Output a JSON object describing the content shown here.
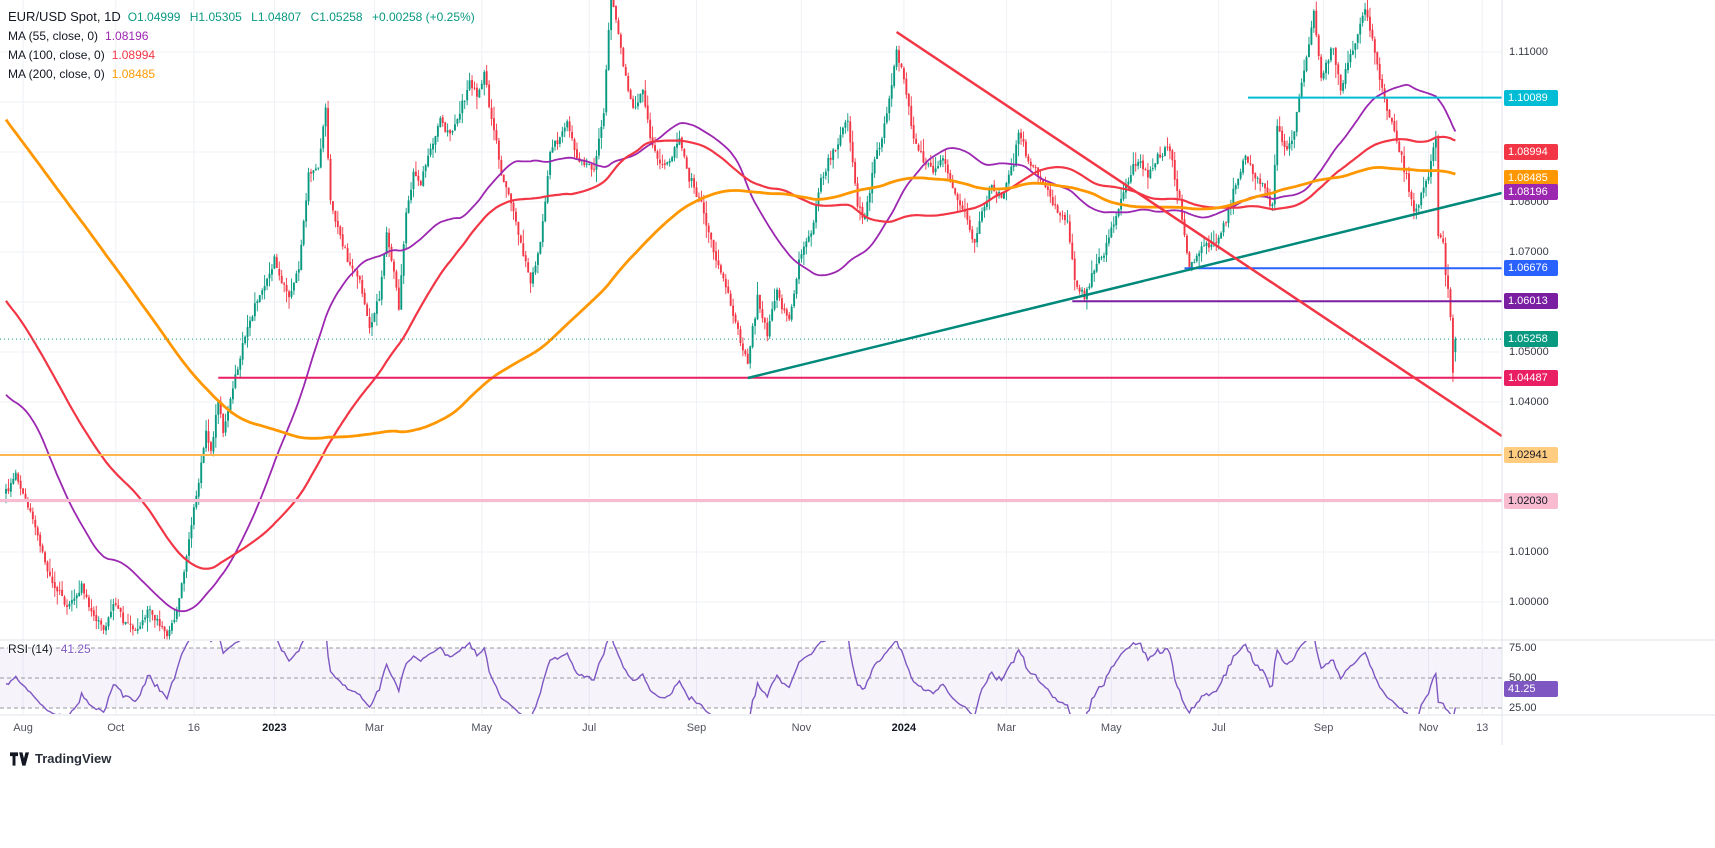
{
  "legend": {
    "symbol": "EUR/USD Spot, 1D",
    "ohlc": {
      "open": "O1.04999",
      "high": "H1.05305",
      "low": "L1.04807",
      "close": "C1.05258",
      "change": "+0.00258 (+0.25%)",
      "color": "#089981"
    },
    "mas": [
      {
        "label": "MA (55, close, 0)",
        "value": "1.08196",
        "color": "#9c27b0"
      },
      {
        "label": "MA (100, close, 0)",
        "value": "1.08994",
        "color": "#f23645"
      },
      {
        "label": "MA (200, close, 0)",
        "value": "1.08485",
        "color": "#ff9800"
      }
    ]
  },
  "rsi_legend": {
    "label": "RSI (14)",
    "value": "41.25",
    "color": "#7e57c2"
  },
  "logo_text": "TradingView",
  "chart_data": {
    "type": "candlestick",
    "symbol": "EUR/USD Spot",
    "timeframe": "1D",
    "x_range": [
      "Aug 2022",
      "Nov 2024"
    ],
    "price_range": [
      0.9924,
      1.1204
    ],
    "up_color": "#089981",
    "down_color": "#f23645",
    "last_candle": {
      "open": 1.04999,
      "high": 1.05305,
      "low": 1.04807,
      "close": 1.05258
    },
    "dip_low": {
      "day": 593,
      "low": 1.044
    },
    "prehistory_days": 210,
    "visible_days": 595,
    "noise_seed": 42,
    "noise_amp": 0.0011,
    "wick_amp": 0.0028,
    "gap_amp": 0.0004,
    "close_anchors": [
      [
        -210,
        1.157
      ],
      [
        -199,
        1.16
      ],
      [
        -177,
        1.132
      ],
      [
        -155,
        1.13
      ],
      [
        -134,
        1.134
      ],
      [
        -114,
        1.134
      ],
      [
        -97,
        1.086
      ],
      [
        -91,
        1.098
      ],
      [
        -70,
        1.085
      ],
      [
        -50,
        1.04
      ],
      [
        -38,
        1.074
      ],
      [
        -27,
        1.052
      ],
      [
        -20,
        1.045
      ],
      [
        -12,
        1.002
      ],
      [
        -4,
        1.018
      ],
      [
        -1,
        1.022
      ],
      [
        0,
        1.022
      ],
      [
        4,
        1.0255
      ],
      [
        10,
        1.018
      ],
      [
        18,
        1.005
      ],
      [
        25,
        0.999
      ],
      [
        31,
        1.003
      ],
      [
        36,
        0.997
      ],
      [
        40,
        0.9945
      ],
      [
        44,
        0.999
      ],
      [
        49,
        0.996
      ],
      [
        53,
        0.9938
      ],
      [
        58,
        0.9985
      ],
      [
        62,
        0.996
      ],
      [
        66,
        0.9932
      ],
      [
        70,
        0.998
      ],
      [
        74,
        1.009
      ],
      [
        78,
        1.0215
      ],
      [
        82,
        1.0345
      ],
      [
        84,
        1.03
      ],
      [
        87,
        1.0405
      ],
      [
        89,
        1.0338
      ],
      [
        92,
        1.0408
      ],
      [
        95,
        1.0465
      ],
      [
        98,
        1.053
      ],
      [
        102,
        1.0592
      ],
      [
        106,
        1.063
      ],
      [
        110,
        1.0685
      ],
      [
        113,
        1.064
      ],
      [
        116,
        1.0605
      ],
      [
        120,
        1.067
      ],
      [
        124,
        1.086
      ],
      [
        128,
        1.087
      ],
      [
        131,
        1.099
      ],
      [
        133,
        1.0795
      ],
      [
        137,
        1.073
      ],
      [
        141,
        1.0675
      ],
      [
        145,
        1.064
      ],
      [
        149,
        1.0548
      ],
      [
        153,
        1.0608
      ],
      [
        156,
        1.0735
      ],
      [
        159,
        1.067
      ],
      [
        161,
        1.0585
      ],
      [
        164,
        1.0778
      ],
      [
        167,
        1.0858
      ],
      [
        170,
        1.0838
      ],
      [
        174,
        1.0908
      ],
      [
        178,
        1.0968
      ],
      [
        182,
        1.0928
      ],
      [
        186,
        1.0978
      ],
      [
        190,
        1.104
      ],
      [
        193,
        1.1012
      ],
      [
        196,
        1.1058
      ],
      [
        199,
        1.0968
      ],
      [
        203,
        1.0858
      ],
      [
        207,
        1.0798
      ],
      [
        211,
        1.0718
      ],
      [
        215,
        1.064
      ],
      [
        219,
        1.0712
      ],
      [
        223,
        1.0898
      ],
      [
        227,
        1.0928
      ],
      [
        230,
        1.0958
      ],
      [
        234,
        1.0892
      ],
      [
        238,
        1.0878
      ],
      [
        241,
        1.0862
      ],
      [
        245,
        1.0978
      ],
      [
        248,
        1.123
      ],
      [
        250,
        1.116
      ],
      [
        253,
        1.107
      ],
      [
        257,
        1.099
      ],
      [
        261,
        1.1018
      ],
      [
        265,
        1.0908
      ],
      [
        269,
        1.0868
      ],
      [
        272,
        1.0878
      ],
      [
        276,
        1.0928
      ],
      [
        280,
        1.0848
      ],
      [
        285,
        1.0798
      ],
      [
        290,
        1.0698
      ],
      [
        294,
        1.0648
      ],
      [
        298,
        1.0578
      ],
      [
        302,
        1.0508
      ],
      [
        304,
        1.0478
      ],
      [
        308,
        1.0608
      ],
      [
        312,
        1.0538
      ],
      [
        316,
        1.0618
      ],
      [
        321,
        1.0558
      ],
      [
        325,
        1.0678
      ],
      [
        330,
        1.0738
      ],
      [
        334,
        1.0848
      ],
      [
        338,
        1.0888
      ],
      [
        342,
        1.0928
      ],
      [
        345,
        1.0968
      ],
      [
        349,
        1.0788
      ],
      [
        352,
        1.0768
      ],
      [
        356,
        1.0888
      ],
      [
        360,
        1.0948
      ],
      [
        365,
        1.11
      ],
      [
        368,
        1.1048
      ],
      [
        372,
        1.0928
      ],
      [
        376,
        1.0888
      ],
      [
        380,
        1.0858
      ],
      [
        384,
        1.0888
      ],
      [
        389,
        1.0818
      ],
      [
        393,
        1.0778
      ],
      [
        397,
        1.0718
      ],
      [
        400,
        1.0778
      ],
      [
        404,
        1.0828
      ],
      [
        408,
        1.0808
      ],
      [
        413,
        1.0878
      ],
      [
        415,
        1.0948
      ],
      [
        419,
        1.0878
      ],
      [
        423,
        1.0858
      ],
      [
        427,
        1.0818
      ],
      [
        431,
        1.0788
      ],
      [
        435,
        1.0758
      ],
      [
        438,
        1.0648
      ],
      [
        442,
        1.061
      ],
      [
        446,
        1.0668
      ],
      [
        450,
        1.0698
      ],
      [
        454,
        1.0758
      ],
      [
        458,
        1.0818
      ],
      [
        462,
        1.0868
      ],
      [
        464,
        1.0888
      ],
      [
        468,
        1.0848
      ],
      [
        472,
        1.0888
      ],
      [
        477,
        1.0908
      ],
      [
        481,
        1.0798
      ],
      [
        485,
        1.0672
      ],
      [
        489,
        1.0698
      ],
      [
        492,
        1.0718
      ],
      [
        495,
        1.0712
      ],
      [
        499,
        1.0748
      ],
      [
        503,
        1.0818
      ],
      [
        508,
        1.0898
      ],
      [
        512,
        1.0848
      ],
      [
        516,
        1.0828
      ],
      [
        519,
        1.0788
      ],
      [
        521,
        1.0958
      ],
      [
        524,
        1.0908
      ],
      [
        527,
        1.0918
      ],
      [
        530,
        1.1008
      ],
      [
        533,
        1.1088
      ],
      [
        536,
        1.1178
      ],
      [
        539,
        1.1048
      ],
      [
        541,
        1.1078
      ],
      [
        544,
        1.1108
      ],
      [
        547,
        1.1018
      ],
      [
        550,
        1.1078
      ],
      [
        553,
        1.1118
      ],
      [
        557,
        1.1188
      ],
      [
        560,
        1.1132
      ],
      [
        563,
        1.1048
      ],
      [
        566,
        1.0988
      ],
      [
        569,
        1.0938
      ],
      [
        572,
        1.0888
      ],
      [
        575,
        1.0828
      ],
      [
        577,
        1.0778
      ],
      [
        580,
        1.0808
      ],
      [
        583,
        1.0858
      ],
      [
        586,
        1.0928
      ],
      [
        587,
        1.0728
      ],
      [
        589,
        1.0718
      ],
      [
        590,
        1.0658
      ],
      [
        591,
        1.0628
      ],
      [
        592,
        1.0568
      ],
      [
        593,
        1.046
      ],
      [
        594,
        1.0526
      ]
    ],
    "moving_averages": [
      {
        "period": 55,
        "color": "#9c27b0",
        "width": 1.8
      },
      {
        "period": 100,
        "color": "#f23645",
        "width": 2.2
      },
      {
        "period": 200,
        "color": "#ff9800",
        "width": 2.8
      }
    ],
    "rsi": {
      "period": 14,
      "color": "#7e57c2",
      "band_fill": "rgba(126,87,194,0.07)",
      "levels": [
        {
          "label": "75.00",
          "value": 75
        },
        {
          "label": "50.00",
          "value": 50
        },
        {
          "label": "25.00",
          "value": 25
        }
      ],
      "badge": {
        "label": "41.25",
        "value": 41.25,
        "bg": "#7e57c2",
        "fg": "#ffffff"
      },
      "last_value": 41.25
    },
    "horizontal_lines": [
      {
        "price": 1.10089,
        "color": "#00bcd4",
        "from_day": 509,
        "width": 2,
        "style": "solid"
      },
      {
        "price": 1.06676,
        "color": "#2962ff",
        "from_day": 483,
        "width": 2,
        "style": "solid"
      },
      {
        "price": 1.06013,
        "color": "#7b1fa2",
        "from_day": 437,
        "width": 2,
        "style": "solid"
      },
      {
        "price": 1.04487,
        "color": "#e91e63",
        "from_day": 87,
        "width": 2,
        "style": "solid"
      },
      {
        "price": 1.02941,
        "color": "#ffb74d",
        "from_day": -210,
        "width": 2,
        "style": "solid"
      },
      {
        "price": 1.0203,
        "color": "#f8bbd0",
        "from_day": -210,
        "width": 3,
        "style": "solid"
      },
      {
        "price": 1.05258,
        "color": "#089981",
        "from_day": -210,
        "width": 1,
        "style": "dotted"
      }
    ],
    "trend_lines": [
      {
        "x1_day": 304,
        "y1_price": 1.0448,
        "x2_day": 613,
        "y2_price": 1.0818,
        "color": "#00897b",
        "width": 2.5
      },
      {
        "x1_day": 365,
        "y1_price": 1.114,
        "x2_day": 613,
        "y2_price": 1.0332,
        "color": "#f23645",
        "width": 2.5
      }
    ],
    "price_labels": [
      {
        "label": "1.10089",
        "price": 1.10089,
        "bg": "#00bcd4",
        "fg": "#ffffff"
      },
      {
        "label": "1.08994",
        "price": 1.08994,
        "bg": "#f23645",
        "fg": "#ffffff"
      },
      {
        "label": "1.08485",
        "price": 1.08485,
        "bg": "#ff9800",
        "fg": "#ffffff"
      },
      {
        "label": "1.08196",
        "price": 1.08196,
        "bg": "#9c27b0",
        "fg": "#ffffff"
      },
      {
        "label": "1.06676",
        "price": 1.06676,
        "bg": "#2962ff",
        "fg": "#ffffff"
      },
      {
        "label": "1.06013",
        "price": 1.06013,
        "bg": "#7b1fa2",
        "fg": "#ffffff"
      },
      {
        "label": "1.05258",
        "price": 1.05258,
        "bg": "#089981",
        "fg": "#ffffff"
      },
      {
        "label": "1.04487",
        "price": 1.04487,
        "bg": "#e91e63",
        "fg": "#ffffff"
      },
      {
        "label": "1.02941",
        "price": 1.02941,
        "bg": "#ffcc80",
        "fg": "#131722"
      },
      {
        "label": "1.02030",
        "price": 1.0203,
        "bg": "#f8bbd0",
        "fg": "#131722"
      }
    ],
    "y_ticks": [
      {
        "label": "1.00000",
        "price": 1.0
      },
      {
        "label": "1.01000",
        "price": 1.01
      },
      {
        "label": "1.02000",
        "price": 1.02
      },
      {
        "label": "1.03000",
        "price": 1.03
      },
      {
        "label": "1.04000",
        "price": 1.04
      },
      {
        "label": "1.05000",
        "price": 1.05
      },
      {
        "label": "1.06000",
        "price": 1.06
      },
      {
        "label": "1.07000",
        "price": 1.07
      },
      {
        "label": "1.08000",
        "price": 1.08
      },
      {
        "label": "1.09000",
        "price": 1.09
      },
      {
        "label": "1.10000",
        "price": 1.1
      },
      {
        "label": "1.11000",
        "price": 1.11
      }
    ],
    "x_ticks": [
      {
        "label": "Aug",
        "day": 7
      },
      {
        "label": "Oct",
        "day": 45
      },
      {
        "label": "16",
        "day": 77
      },
      {
        "label": "2023",
        "day": 110,
        "bold": true
      },
      {
        "label": "Mar",
        "day": 151
      },
      {
        "label": "May",
        "day": 195
      },
      {
        "label": "Jul",
        "day": 239
      },
      {
        "label": "Sep",
        "day": 283
      },
      {
        "label": "Nov",
        "day": 326
      },
      {
        "label": "2024",
        "day": 368,
        "bold": true
      },
      {
        "label": "Mar",
        "day": 410
      },
      {
        "label": "May",
        "day": 453
      },
      {
        "label": "Jul",
        "day": 497
      },
      {
        "label": "Sep",
        "day": 540
      },
      {
        "label": "Nov",
        "day": 583
      },
      {
        "label": "13",
        "day": 605
      }
    ],
    "grid": {
      "color": "#eef1f6",
      "separator_color": "#e0e3eb"
    }
  }
}
